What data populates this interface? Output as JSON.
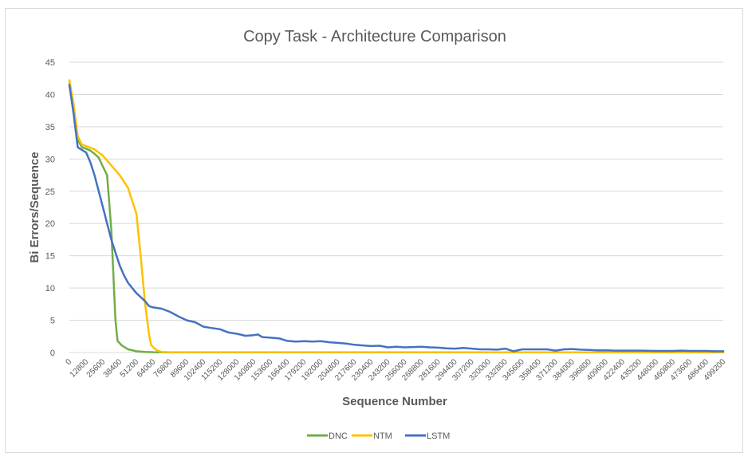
{
  "chart_data": {
    "type": "line",
    "title": "Copy Task - Architecture Comparison",
    "xlabel": "Sequence Number",
    "ylabel": "Bi Errors/Sequence",
    "ylim": [
      0,
      45
    ],
    "yticks": [
      0,
      5,
      10,
      15,
      20,
      25,
      30,
      35,
      40,
      45
    ],
    "xlim": [
      0,
      499200
    ],
    "xticks": [
      0,
      12800,
      25600,
      38400,
      51200,
      64000,
      76800,
      89600,
      102400,
      115200,
      128000,
      140800,
      153600,
      166400,
      179200,
      192000,
      204800,
      217600,
      230400,
      243200,
      256000,
      268800,
      281600,
      294400,
      307200,
      320000,
      332800,
      345600,
      358400,
      371200,
      384000,
      396800,
      409600,
      422400,
      435200,
      448000,
      460800,
      473600,
      486400,
      499200
    ],
    "grid": true,
    "legend_position": "bottom",
    "series": [
      {
        "name": "DNC",
        "color": "#70ad47",
        "points": [
          [
            0,
            42
          ],
          [
            3200,
            38
          ],
          [
            6400,
            33
          ],
          [
            9600,
            31.8
          ],
          [
            12800,
            31.6
          ],
          [
            16000,
            31.3
          ],
          [
            19200,
            30.8
          ],
          [
            22400,
            30.2
          ],
          [
            25600,
            28.8
          ],
          [
            28800,
            27.5
          ],
          [
            32000,
            19
          ],
          [
            33600,
            12
          ],
          [
            35200,
            5
          ],
          [
            36800,
            1.8
          ],
          [
            40000,
            1.1
          ],
          [
            44800,
            0.5
          ],
          [
            51200,
            0.2
          ],
          [
            57600,
            0.1
          ],
          [
            64000,
            0.05
          ],
          [
            76800,
            0.02
          ],
          [
            499200,
            0.02
          ]
        ]
      },
      {
        "name": "NTM",
        "color": "#ffc000",
        "points": [
          [
            0,
            42.2
          ],
          [
            3200,
            38.5
          ],
          [
            6400,
            33.5
          ],
          [
            9600,
            32.2
          ],
          [
            12800,
            32
          ],
          [
            19200,
            31.5
          ],
          [
            25600,
            30.5
          ],
          [
            32000,
            29
          ],
          [
            38400,
            27.5
          ],
          [
            44800,
            25.5
          ],
          [
            48000,
            23.5
          ],
          [
            51200,
            21.5
          ],
          [
            54400,
            15
          ],
          [
            57600,
            8
          ],
          [
            60800,
            2.8
          ],
          [
            62400,
            1.2
          ],
          [
            64000,
            0.8
          ],
          [
            67200,
            0.3
          ],
          [
            70400,
            0.1
          ],
          [
            76800,
            0.05
          ],
          [
            499200,
            0.03
          ]
        ]
      },
      {
        "name": "LSTM",
        "color": "#4472c4",
        "points": [
          [
            0,
            41.5
          ],
          [
            3200,
            37
          ],
          [
            6400,
            31.8
          ],
          [
            12800,
            31
          ],
          [
            16000,
            29.5
          ],
          [
            19200,
            27.5
          ],
          [
            22400,
            25
          ],
          [
            25600,
            22.5
          ],
          [
            28800,
            20
          ],
          [
            32000,
            17.5
          ],
          [
            35200,
            15.5
          ],
          [
            38400,
            13.5
          ],
          [
            41600,
            12
          ],
          [
            44800,
            10.8
          ],
          [
            48000,
            10
          ],
          [
            51200,
            9.2
          ],
          [
            54400,
            8.6
          ],
          [
            57600,
            8
          ],
          [
            60800,
            7.2
          ],
          [
            64000,
            7
          ],
          [
            70400,
            6.8
          ],
          [
            76800,
            6.3
          ],
          [
            83200,
            5.6
          ],
          [
            89600,
            5
          ],
          [
            96000,
            4.7
          ],
          [
            102400,
            4
          ],
          [
            108800,
            3.8
          ],
          [
            115200,
            3.6
          ],
          [
            121600,
            3.1
          ],
          [
            128000,
            2.9
          ],
          [
            134400,
            2.6
          ],
          [
            140800,
            2.7
          ],
          [
            144000,
            2.8
          ],
          [
            147200,
            2.4
          ],
          [
            153600,
            2.3
          ],
          [
            160000,
            2.2
          ],
          [
            166400,
            1.8
          ],
          [
            172800,
            1.7
          ],
          [
            179200,
            1.75
          ],
          [
            185600,
            1.7
          ],
          [
            192000,
            1.75
          ],
          [
            198400,
            1.6
          ],
          [
            204800,
            1.5
          ],
          [
            211200,
            1.4
          ],
          [
            217600,
            1.2
          ],
          [
            224000,
            1.1
          ],
          [
            230400,
            1
          ],
          [
            236800,
            1.05
          ],
          [
            243200,
            0.8
          ],
          [
            249600,
            0.9
          ],
          [
            256000,
            0.8
          ],
          [
            262400,
            0.85
          ],
          [
            268800,
            0.9
          ],
          [
            275200,
            0.8
          ],
          [
            281600,
            0.75
          ],
          [
            288000,
            0.65
          ],
          [
            294400,
            0.6
          ],
          [
            300800,
            0.7
          ],
          [
            307200,
            0.6
          ],
          [
            313600,
            0.5
          ],
          [
            320000,
            0.5
          ],
          [
            326400,
            0.45
          ],
          [
            332800,
            0.6
          ],
          [
            339200,
            0.2
          ],
          [
            345600,
            0.5
          ],
          [
            352000,
            0.5
          ],
          [
            358400,
            0.5
          ],
          [
            364800,
            0.5
          ],
          [
            371200,
            0.3
          ],
          [
            377600,
            0.5
          ],
          [
            384000,
            0.55
          ],
          [
            390400,
            0.45
          ],
          [
            396800,
            0.4
          ],
          [
            403200,
            0.35
          ],
          [
            409600,
            0.35
          ],
          [
            416000,
            0.3
          ],
          [
            422400,
            0.3
          ],
          [
            435200,
            0.3
          ],
          [
            448000,
            0.25
          ],
          [
            460800,
            0.25
          ],
          [
            467200,
            0.3
          ],
          [
            473600,
            0.25
          ],
          [
            486400,
            0.25
          ],
          [
            492800,
            0.2
          ],
          [
            499200,
            0.2
          ]
        ]
      }
    ]
  }
}
